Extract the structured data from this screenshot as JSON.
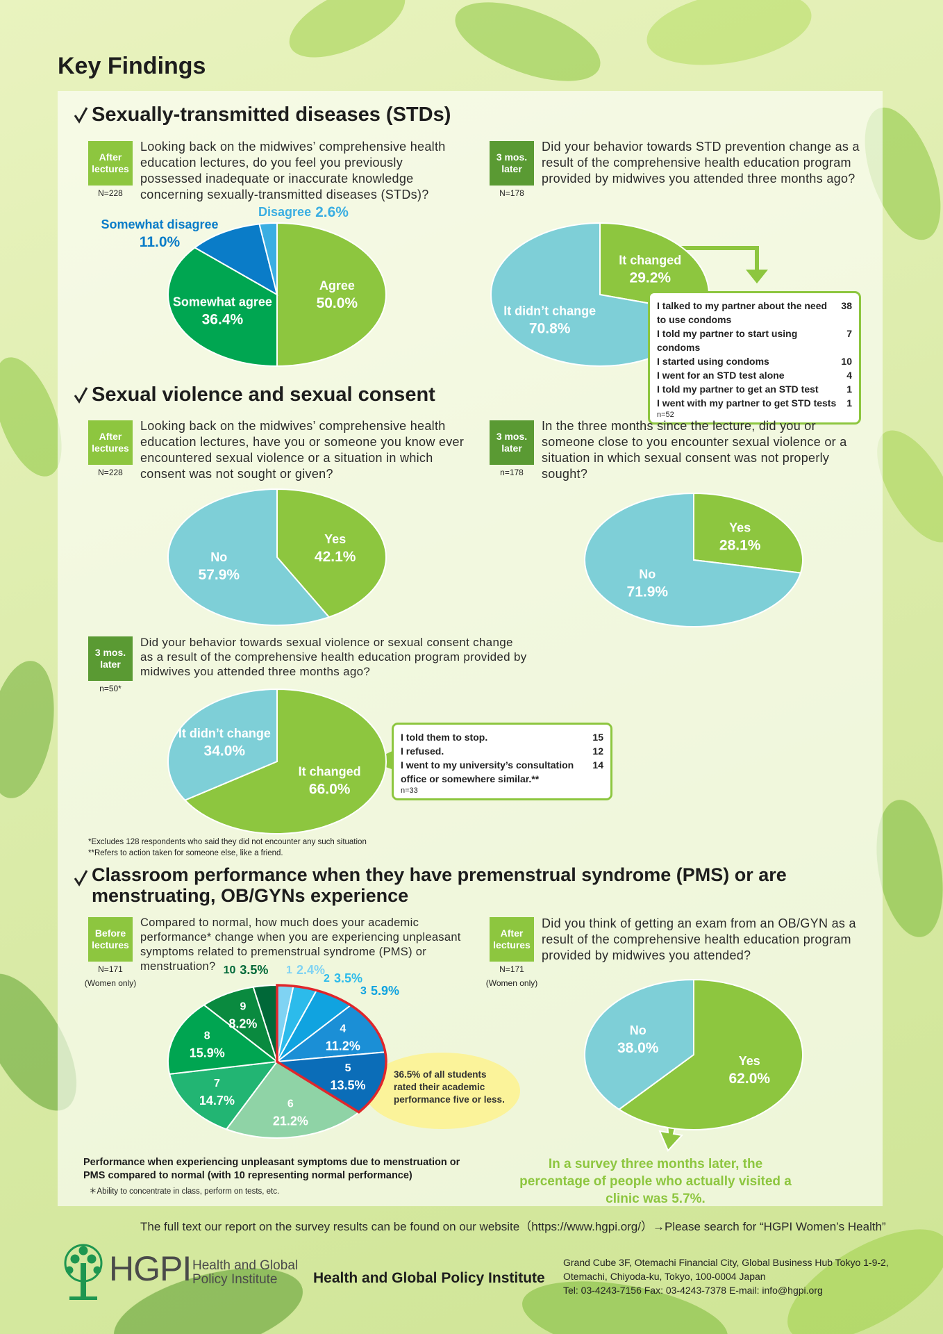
{
  "title": "Key Findings",
  "sections": [
    "Sexually-transmitted diseases (STDs)",
    "Sexual violence and sexual consent",
    "Classroom performance when they have premenstrual syndrome (PMS) or are menstruating, OB/GYNs experience"
  ],
  "chart_data": [
    {
      "type": "pie",
      "badge": "After lectures",
      "sample": "N=228",
      "title": "Looking back on the midwives’ comprehensive health education lectures, do you feel you previously possessed inadequate or inaccurate knowledge concerning sexually-transmitted diseases (STDs)?",
      "categories": [
        "Agree",
        "Somewhat agree",
        "Somewhat disagree",
        "Disagree"
      ],
      "values": [
        50,
        36.4,
        11,
        2.6
      ],
      "value_labels": [
        "50.0%",
        "36.4%",
        "11.0%",
        "2.6%"
      ],
      "colors": [
        "#8dc63f",
        "#00a651",
        "#0a7cc8",
        "#3aaee2"
      ]
    },
    {
      "type": "pie",
      "badge": "3 mos. later",
      "sample": "N=178",
      "title": "Did your behavior towards STD prevention change as a result of the comprehensive health education program provided by midwives you attended three months ago?",
      "categories": [
        "It changed",
        "It didn’t change"
      ],
      "values": [
        29.2,
        70.8
      ],
      "value_labels": [
        "29.2%",
        "70.8%"
      ],
      "colors": [
        "#8dc63f",
        "#7ecfd7"
      ],
      "breakdown": {
        "items": [
          {
            "label": "I talked to my partner about the need to use condoms",
            "count": 38
          },
          {
            "label": "I told my partner to start using condoms",
            "count": 7
          },
          {
            "label": "I started using condoms",
            "count": 10
          },
          {
            "label": "I went for an STD test alone",
            "count": 4
          },
          {
            "label": "I told my partner to get an STD test",
            "count": 1
          },
          {
            "label": "I went with my partner to get STD tests",
            "count": 1
          }
        ],
        "note": "n=52"
      }
    },
    {
      "type": "pie",
      "badge": "After lectures",
      "sample": "N=228",
      "title": "Looking back on the midwives’ comprehensive health education lectures, have you or someone you know ever encountered sexual violence or a situation in which consent was not sought or given?",
      "categories": [
        "Yes",
        "No"
      ],
      "values": [
        42.1,
        57.9
      ],
      "value_labels": [
        "42.1%",
        "57.9%"
      ],
      "colors": [
        "#8dc63f",
        "#7ecfd7"
      ]
    },
    {
      "type": "pie",
      "badge": "3 mos. later",
      "sample": "n=178",
      "title": "In the three months since the lecture, did you or someone close to you encounter sexual violence or a situation in which sexual consent was not properly sought?",
      "categories": [
        "Yes",
        "No"
      ],
      "values": [
        28.1,
        71.9
      ],
      "value_labels": [
        "28.1%",
        "71.9%"
      ],
      "colors": [
        "#8dc63f",
        "#7ecfd7"
      ]
    },
    {
      "type": "pie",
      "badge": "3 mos. later",
      "sample": "n=50*",
      "title": "Did your behavior towards sexual violence or sexual consent change as a result of the comprehensive health education program provided by midwives you attended three months ago?",
      "categories": [
        "It changed",
        "It didn’t change"
      ],
      "values": [
        66,
        34
      ],
      "value_labels": [
        "66.0%",
        "34.0%"
      ],
      "colors": [
        "#8dc63f",
        "#7ecfd7"
      ],
      "breakdown": {
        "items": [
          {
            "label": "I told them to stop.",
            "count": 15
          },
          {
            "label": "I refused.",
            "count": 12
          },
          {
            "label": "I went to my university’s consultation office or somewhere similar.**",
            "count": 14
          }
        ],
        "note": "n=33"
      },
      "notes": [
        "*Excludes 128 respondents who said they did not encounter any such situation",
        "**Refers to action taken for someone else, like a friend."
      ]
    },
    {
      "type": "pie",
      "badge": "Before lectures",
      "sample": "N=171",
      "sample_note": "(Women only)",
      "title": "Compared to normal, how much does your academic performance* change when you are experiencing unpleasant symptoms related to premenstrual syndrome (PMS) or menstruation?",
      "categories": [
        "1",
        "2",
        "3",
        "4",
        "5",
        "6",
        "7",
        "8",
        "9",
        "10"
      ],
      "values": [
        2.4,
        3.5,
        5.9,
        11.2,
        13.5,
        21.2,
        14.7,
        15.9,
        8.2,
        3.5
      ],
      "value_labels": [
        "2.4%",
        "3.5%",
        "5.9%",
        "11.2%",
        "13.5%",
        "21.2%",
        "14.7%",
        "15.9%",
        "8.2%",
        "3.5%"
      ],
      "colors": [
        "#7fd3f3",
        "#2cbbeb",
        "#10a3e0",
        "#1b8fd6",
        "#0b6db8",
        "#8fd3a6",
        "#22b573",
        "#00a551",
        "#0a8a3f",
        "#006838"
      ],
      "annotation": "36.5% of all students rated their academic performance five or less.",
      "caption": "Performance when experiencing unpleasant symptoms due to menstruation or PMS compared to normal (with 10 representing normal performance)",
      "note": "＊Ability to concentrate in class, perform on tests, etc."
    },
    {
      "type": "pie",
      "badge": "After lectures",
      "sample": "N=171",
      "sample_note": "(Women only)",
      "title": "Did you think of getting an exam from an OB/GYN as a result of the comprehensive health education program provided by midwives you attended?",
      "categories": [
        "Yes",
        "No"
      ],
      "values": [
        62,
        38
      ],
      "value_labels": [
        "62.0%",
        "38.0%"
      ],
      "colors": [
        "#8dc63f",
        "#7ecfd7"
      ],
      "annotation": "In a survey three months later, the percentage of people who actually visited a clinic was 5.7%."
    }
  ],
  "footer": {
    "website_note": "The full text our report on the survey results can be found on our website（https://www.hgpi.org/）→Please search for “HGPI Women’s Health”",
    "logo_mark": "HGPI",
    "logo_name": "Health and Global Policy Institute",
    "organization": "Health and Global Policy Institute",
    "address": [
      "Grand Cube 3F, Otemachi Financial City, Global Business Hub Tokyo 1-9-2,",
      "Otemachi, Chiyoda-ku, Tokyo, 100-0004 Japan",
      "Tel: 03-4243-7156   Fax: 03-4243-7378   E-mail: info@hgpi.org"
    ]
  }
}
